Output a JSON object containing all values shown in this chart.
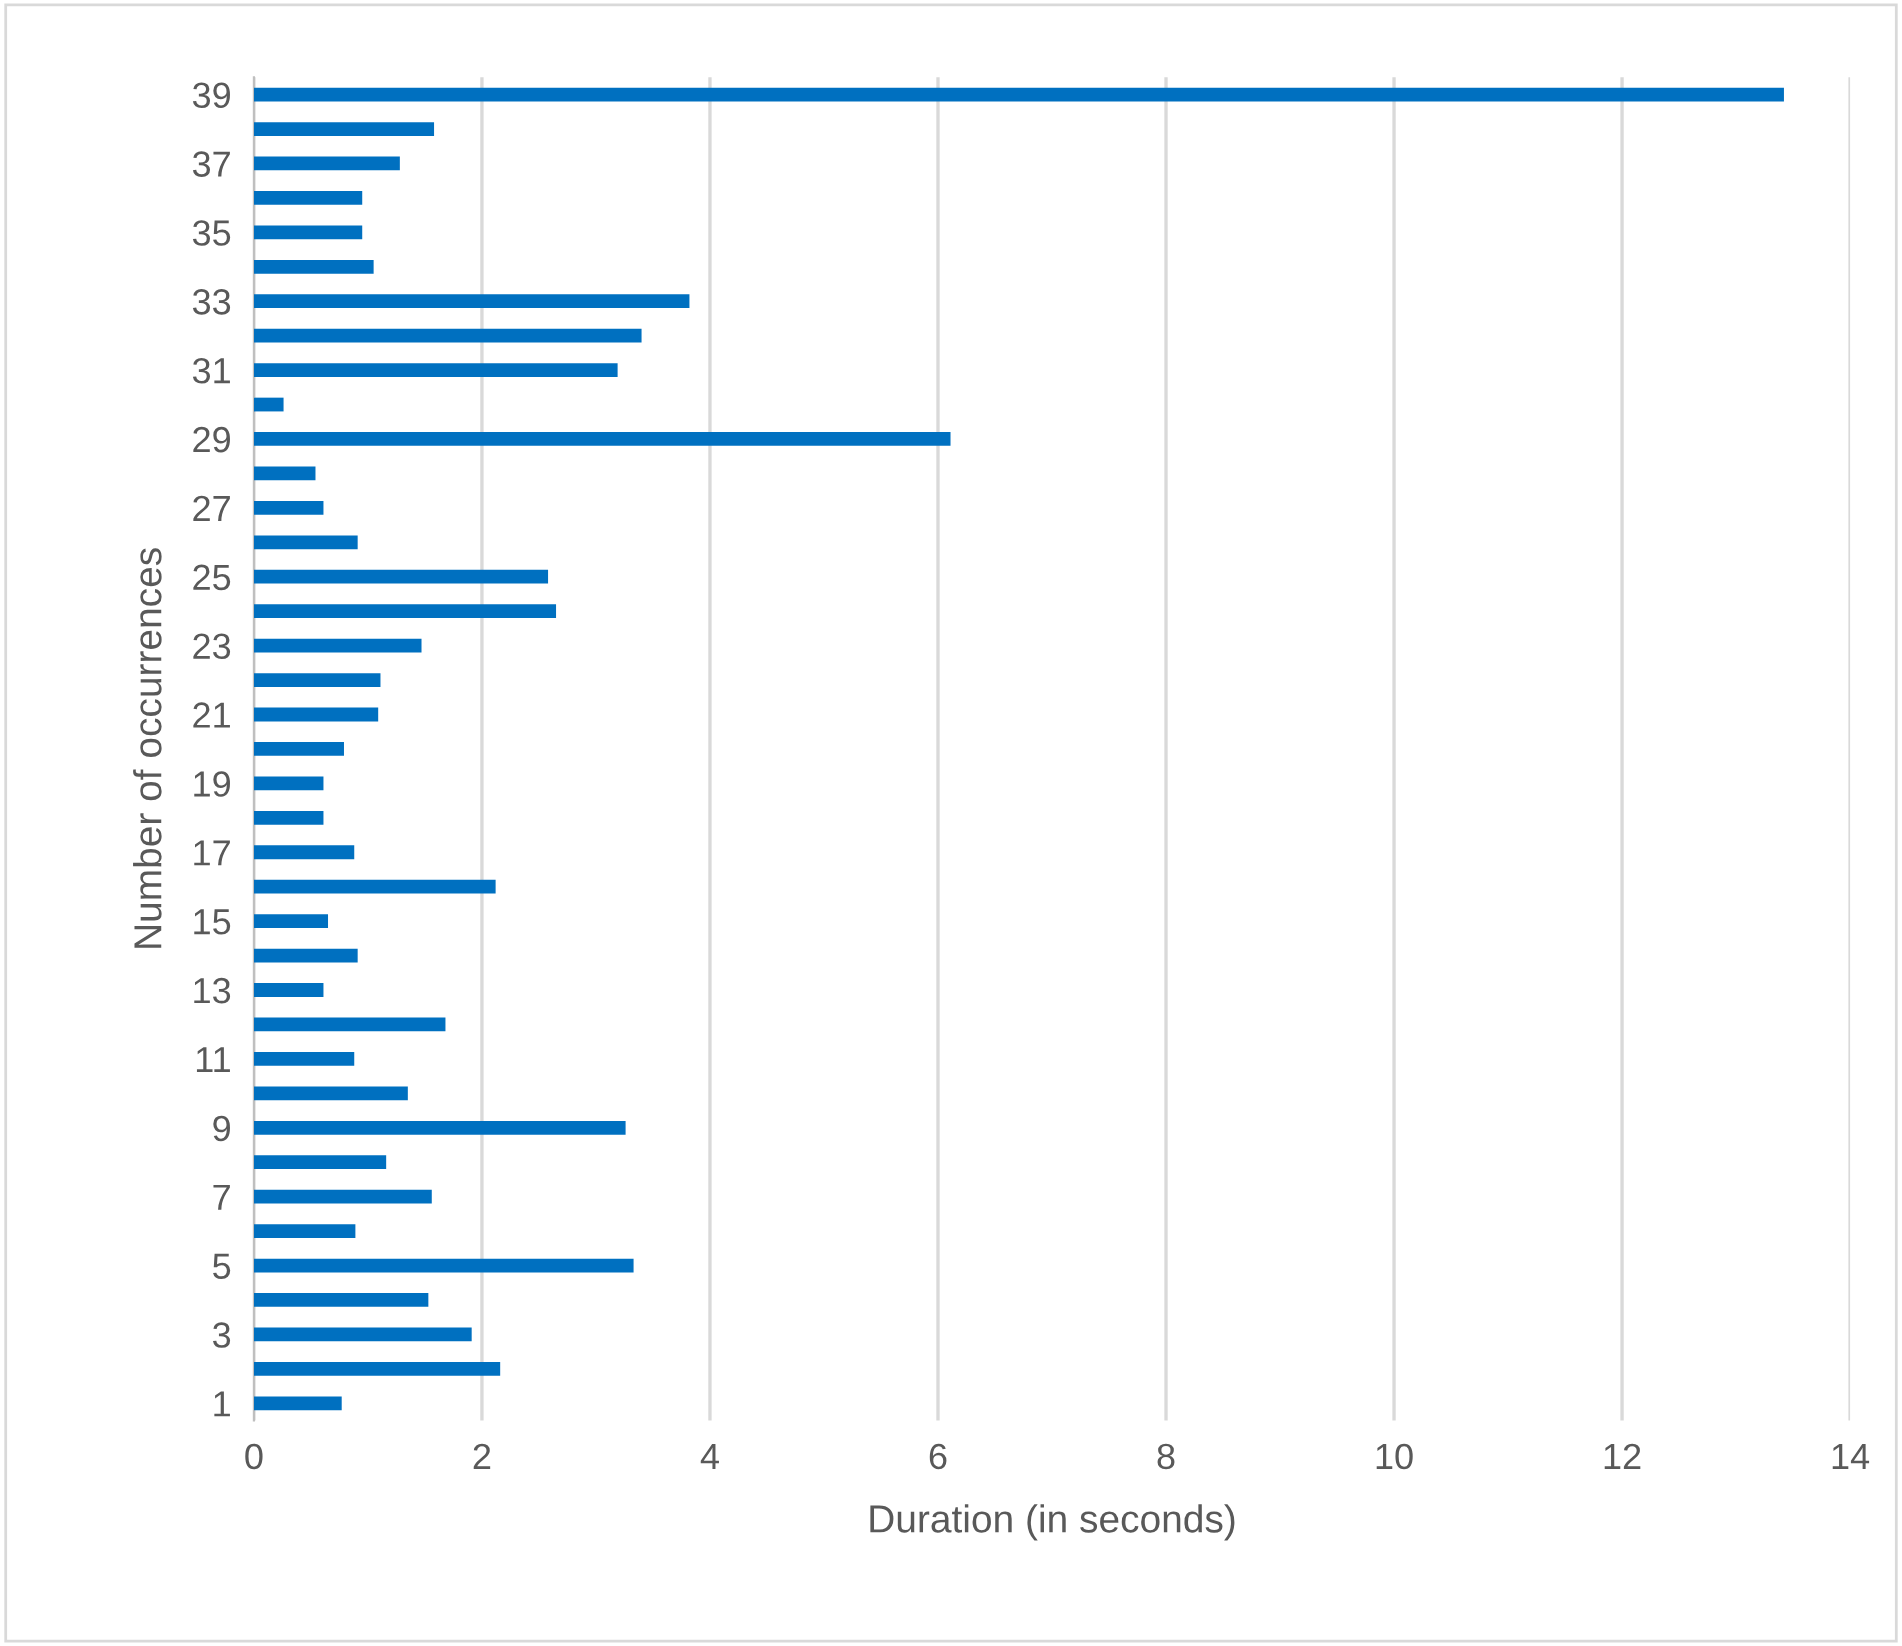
{
  "chart_data": {
    "type": "bar",
    "orientation": "horizontal",
    "xlabel": "Duration (in seconds)",
    "ylabel": "Number of occurrences",
    "categories": [
      "39",
      null,
      "37",
      null,
      "35",
      null,
      "33",
      null,
      "31",
      null,
      "29",
      null,
      "27",
      null,
      "25",
      null,
      "23",
      null,
      "21",
      null,
      "19",
      null,
      "17",
      null,
      "15",
      null,
      "13",
      null,
      "11",
      null,
      "9",
      null,
      "7",
      null,
      "5",
      null,
      "3",
      null,
      "1"
    ],
    "values": [
      13.42,
      1.58,
      1.28,
      0.95,
      0.95,
      1.05,
      3.82,
      3.4,
      3.19,
      0.26,
      6.11,
      0.54,
      0.61,
      0.91,
      2.58,
      2.65,
      1.47,
      1.11,
      1.09,
      0.79,
      0.61,
      0.61,
      0.88,
      2.12,
      0.65,
      0.91,
      0.61,
      1.68,
      0.88,
      1.35,
      3.26,
      1.16,
      1.56,
      0.89,
      3.33,
      1.53,
      1.91,
      2.16,
      0.77
    ],
    "color": "#0070c0",
    "xlim": [
      0,
      14
    ],
    "xticks": [
      0,
      2,
      4,
      6,
      8,
      10,
      12,
      14
    ],
    "grid": "x"
  }
}
